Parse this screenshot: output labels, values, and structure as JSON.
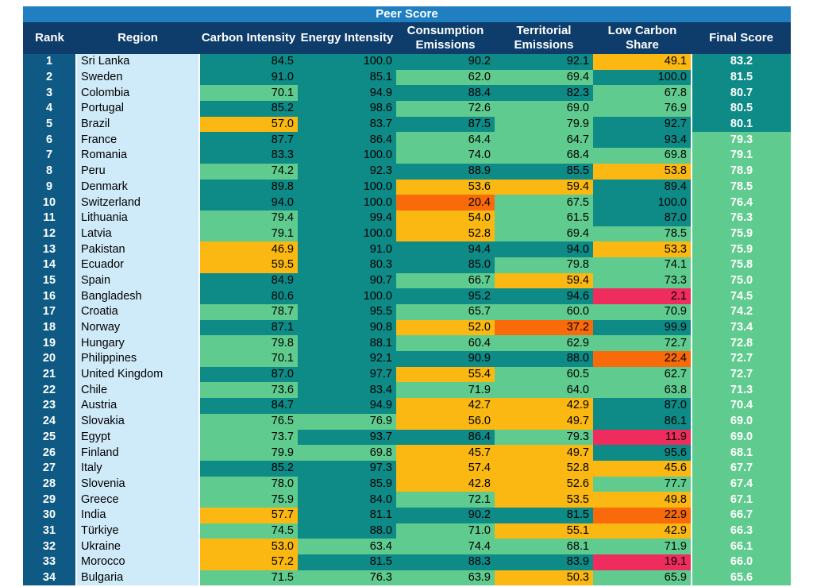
{
  "colors": {
    "header_bg": "#0e3d6b",
    "banner_bg": "#1f7fc1",
    "rank_bg": "#0e5a85",
    "region_bg": "#cfeaf8",
    "dark_teal": "#0e8a87",
    "light_green": "#5fcb8e",
    "amber": "#fbb813",
    "orange": "#f96a0a",
    "red": "#ee2c5e",
    "separator": "#ffffff"
  },
  "banner": "Peer Score",
  "headers": {
    "rank": "Rank",
    "region": "Region",
    "carbon_intensity": "Carbon Intensity",
    "energy_intensity": "Energy Intensity",
    "consumption_emissions": "Consumption Emissions",
    "territorial_emissions": "Territorial Emissions",
    "low_carbon_share": "Low Carbon Share",
    "final_score": "Final Score"
  },
  "rows": [
    {
      "rank": "1",
      "region": "Sri Lanka",
      "cells": [
        "84.5",
        "100.0",
        "90.2",
        "92.1",
        "49.1"
      ],
      "tiers": [
        "t",
        "t",
        "t",
        "t",
        "a"
      ],
      "final": "83.2",
      "final_tier": "t"
    },
    {
      "rank": "2",
      "region": "Sweden",
      "cells": [
        "91.0",
        "85.1",
        "62.0",
        "69.4",
        "100.0"
      ],
      "tiers": [
        "t",
        "t",
        "g",
        "g",
        "t"
      ],
      "final": "81.5",
      "final_tier": "t"
    },
    {
      "rank": "3",
      "region": "Colombia",
      "cells": [
        "70.1",
        "94.9",
        "88.4",
        "82.3",
        "67.8"
      ],
      "tiers": [
        "g",
        "t",
        "t",
        "t",
        "g"
      ],
      "final": "80.7",
      "final_tier": "t"
    },
    {
      "rank": "4",
      "region": "Portugal",
      "cells": [
        "85.2",
        "98.6",
        "72.6",
        "69.0",
        "76.9"
      ],
      "tiers": [
        "t",
        "t",
        "g",
        "g",
        "g"
      ],
      "final": "80.5",
      "final_tier": "t"
    },
    {
      "rank": "5",
      "region": "Brazil",
      "cells": [
        "57.0",
        "83.7",
        "87.5",
        "79.9",
        "92.7"
      ],
      "tiers": [
        "a",
        "t",
        "t",
        "g",
        "t"
      ],
      "final": "80.1",
      "final_tier": "t"
    },
    {
      "rank": "6",
      "region": "France",
      "cells": [
        "87.7",
        "86.4",
        "64.4",
        "64.7",
        "93.4"
      ],
      "tiers": [
        "t",
        "t",
        "g",
        "g",
        "t"
      ],
      "final": "79.3",
      "final_tier": "g"
    },
    {
      "rank": "7",
      "region": "Romania",
      "cells": [
        "83.3",
        "100.0",
        "74.0",
        "68.4",
        "69.8"
      ],
      "tiers": [
        "t",
        "t",
        "g",
        "g",
        "g"
      ],
      "final": "79.1",
      "final_tier": "g"
    },
    {
      "rank": "8",
      "region": "Peru",
      "cells": [
        "74.2",
        "92.3",
        "88.9",
        "85.5",
        "53.8"
      ],
      "tiers": [
        "g",
        "t",
        "t",
        "t",
        "a"
      ],
      "final": "78.9",
      "final_tier": "g"
    },
    {
      "rank": "9",
      "region": "Denmark",
      "cells": [
        "89.8",
        "100.0",
        "53.6",
        "59.4",
        "89.4"
      ],
      "tiers": [
        "t",
        "t",
        "a",
        "a",
        "t"
      ],
      "final": "78.5",
      "final_tier": "g"
    },
    {
      "rank": "10",
      "region": "Switzerland",
      "cells": [
        "94.0",
        "100.0",
        "20.4",
        "67.5",
        "100.0"
      ],
      "tiers": [
        "t",
        "t",
        "o",
        "g",
        "t"
      ],
      "final": "76.4",
      "final_tier": "g"
    },
    {
      "rank": "11",
      "region": "Lithuania",
      "cells": [
        "79.4",
        "99.4",
        "54.0",
        "61.5",
        "87.0"
      ],
      "tiers": [
        "g",
        "t",
        "a",
        "g",
        "t"
      ],
      "final": "76.3",
      "final_tier": "g"
    },
    {
      "rank": "12",
      "region": "Latvia",
      "cells": [
        "79.1",
        "100.0",
        "52.8",
        "69.4",
        "78.5"
      ],
      "tiers": [
        "g",
        "t",
        "a",
        "g",
        "g"
      ],
      "final": "75.9",
      "final_tier": "g"
    },
    {
      "rank": "13",
      "region": "Pakistan",
      "cells": [
        "46.9",
        "91.0",
        "94.4",
        "94.0",
        "53.3"
      ],
      "tiers": [
        "a",
        "t",
        "t",
        "t",
        "a"
      ],
      "final": "75.9",
      "final_tier": "g"
    },
    {
      "rank": "14",
      "region": "Ecuador",
      "cells": [
        "59.5",
        "80.3",
        "85.0",
        "79.8",
        "74.1"
      ],
      "tiers": [
        "a",
        "t",
        "t",
        "g",
        "g"
      ],
      "final": "75.8",
      "final_tier": "g"
    },
    {
      "rank": "15",
      "region": "Spain",
      "cells": [
        "84.9",
        "90.7",
        "66.7",
        "59.4",
        "73.3"
      ],
      "tiers": [
        "t",
        "t",
        "g",
        "a",
        "g"
      ],
      "final": "75.0",
      "final_tier": "g"
    },
    {
      "rank": "16",
      "region": "Bangladesh",
      "cells": [
        "80.6",
        "100.0",
        "95.2",
        "94.6",
        "2.1"
      ],
      "tiers": [
        "t",
        "t",
        "t",
        "t",
        "r"
      ],
      "final": "74.5",
      "final_tier": "g"
    },
    {
      "rank": "17",
      "region": "Croatia",
      "cells": [
        "78.7",
        "95.5",
        "65.7",
        "60.0",
        "70.9"
      ],
      "tiers": [
        "g",
        "t",
        "g",
        "g",
        "g"
      ],
      "final": "74.2",
      "final_tier": "g"
    },
    {
      "rank": "18",
      "region": "Norway",
      "cells": [
        "87.1",
        "90.8",
        "52.0",
        "37.2",
        "99.9"
      ],
      "tiers": [
        "t",
        "t",
        "a",
        "o",
        "t"
      ],
      "final": "73.4",
      "final_tier": "g"
    },
    {
      "rank": "19",
      "region": "Hungary",
      "cells": [
        "79.8",
        "88.1",
        "60.4",
        "62.9",
        "72.7"
      ],
      "tiers": [
        "g",
        "t",
        "g",
        "g",
        "g"
      ],
      "final": "72.8",
      "final_tier": "g"
    },
    {
      "rank": "20",
      "region": "Philippines",
      "cells": [
        "70.1",
        "92.1",
        "90.9",
        "88.0",
        "22.4"
      ],
      "tiers": [
        "g",
        "t",
        "t",
        "t",
        "o"
      ],
      "final": "72.7",
      "final_tier": "g"
    },
    {
      "rank": "21",
      "region": "United Kingdom",
      "cells": [
        "87.0",
        "97.7",
        "55.4",
        "60.5",
        "62.7"
      ],
      "tiers": [
        "t",
        "t",
        "a",
        "g",
        "g"
      ],
      "final": "72.7",
      "final_tier": "g"
    },
    {
      "rank": "22",
      "region": "Chile",
      "cells": [
        "73.6",
        "83.4",
        "71.9",
        "64.0",
        "63.8"
      ],
      "tiers": [
        "g",
        "t",
        "g",
        "g",
        "g"
      ],
      "final": "71.3",
      "final_tier": "g"
    },
    {
      "rank": "23",
      "region": "Austria",
      "cells": [
        "84.7",
        "94.9",
        "42.7",
        "42.9",
        "87.0"
      ],
      "tiers": [
        "t",
        "t",
        "a",
        "a",
        "t"
      ],
      "final": "70.4",
      "final_tier": "g"
    },
    {
      "rank": "24",
      "region": "Slovakia",
      "cells": [
        "76.5",
        "76.9",
        "56.0",
        "49.7",
        "86.1"
      ],
      "tiers": [
        "g",
        "g",
        "a",
        "a",
        "t"
      ],
      "final": "69.0",
      "final_tier": "g"
    },
    {
      "rank": "25",
      "region": "Egypt",
      "cells": [
        "73.7",
        "93.7",
        "86.4",
        "79.3",
        "11.9"
      ],
      "tiers": [
        "g",
        "t",
        "t",
        "g",
        "r"
      ],
      "final": "69.0",
      "final_tier": "g"
    },
    {
      "rank": "26",
      "region": "Finland",
      "cells": [
        "79.9",
        "69.8",
        "45.7",
        "49.7",
        "95.6"
      ],
      "tiers": [
        "g",
        "g",
        "a",
        "a",
        "t"
      ],
      "final": "68.1",
      "final_tier": "g"
    },
    {
      "rank": "27",
      "region": "Italy",
      "cells": [
        "85.2",
        "97.3",
        "57.4",
        "52.8",
        "45.6"
      ],
      "tiers": [
        "t",
        "t",
        "a",
        "a",
        "a"
      ],
      "final": "67.7",
      "final_tier": "g"
    },
    {
      "rank": "28",
      "region": "Slovenia",
      "cells": [
        "78.0",
        "85.9",
        "42.8",
        "52.6",
        "77.7"
      ],
      "tiers": [
        "g",
        "t",
        "a",
        "a",
        "g"
      ],
      "final": "67.4",
      "final_tier": "g"
    },
    {
      "rank": "29",
      "region": "Greece",
      "cells": [
        "75.9",
        "84.0",
        "72.1",
        "53.5",
        "49.8"
      ],
      "tiers": [
        "g",
        "t",
        "g",
        "a",
        "a"
      ],
      "final": "67.1",
      "final_tier": "g"
    },
    {
      "rank": "30",
      "region": "India",
      "cells": [
        "57.7",
        "81.1",
        "90.2",
        "81.5",
        "22.9"
      ],
      "tiers": [
        "a",
        "t",
        "t",
        "t",
        "o"
      ],
      "final": "66.7",
      "final_tier": "g"
    },
    {
      "rank": "31",
      "region": "Türkiye",
      "cells": [
        "74.5",
        "88.0",
        "71.0",
        "55.1",
        "42.9"
      ],
      "tiers": [
        "g",
        "t",
        "g",
        "a",
        "a"
      ],
      "final": "66.3",
      "final_tier": "g"
    },
    {
      "rank": "32",
      "region": "Ukraine",
      "cells": [
        "53.0",
        "63.4",
        "74.4",
        "68.1",
        "71.9"
      ],
      "tiers": [
        "a",
        "g",
        "g",
        "g",
        "g"
      ],
      "final": "66.1",
      "final_tier": "g"
    },
    {
      "rank": "33",
      "region": "Morocco",
      "cells": [
        "57.2",
        "81.5",
        "88.3",
        "83.9",
        "19.1"
      ],
      "tiers": [
        "a",
        "t",
        "t",
        "t",
        "r"
      ],
      "final": "66.0",
      "final_tier": "g"
    },
    {
      "rank": "34",
      "region": "Bulgaria",
      "cells": [
        "71.5",
        "76.3",
        "63.9",
        "50.3",
        "65.9"
      ],
      "tiers": [
        "g",
        "g",
        "g",
        "a",
        "g"
      ],
      "final": "65.6",
      "final_tier": "g"
    }
  ]
}
